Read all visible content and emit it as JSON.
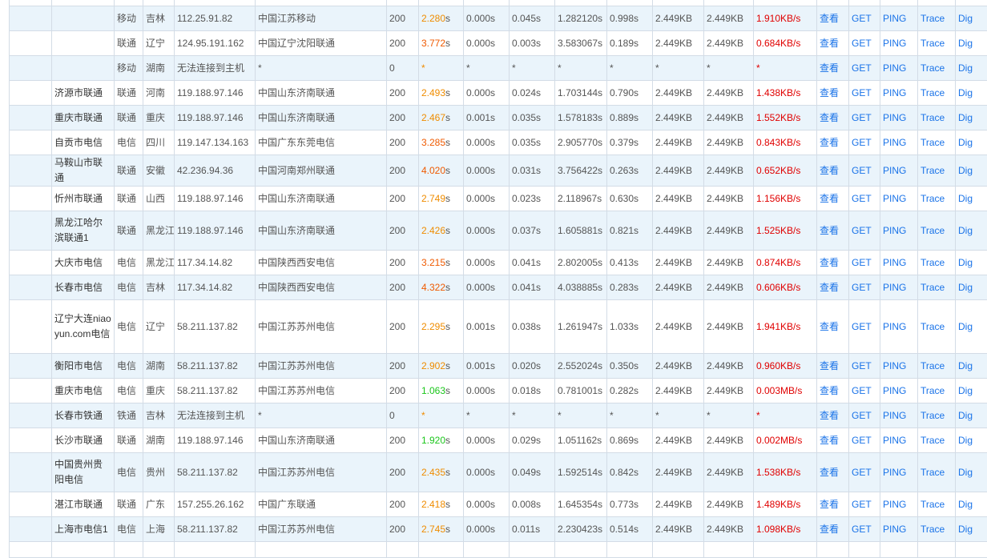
{
  "links": {
    "view": "查看",
    "get": "GET",
    "ping": "PING",
    "trace": "Trace",
    "dig": "Dig"
  },
  "rows": [
    {
      "h": 13,
      "partial": true,
      "name": "",
      "isp": "",
      "prov": "",
      "ip": "",
      "loc": "",
      "code": "",
      "total": "",
      "tclass": "slow",
      "unit": "",
      "dns": "",
      "connect": "",
      "download": "",
      "redirect": "",
      "size": "",
      "dsize": "",
      "speed": "",
      "showLinks": false
    },
    {
      "h": 31,
      "name": "",
      "isp": "移动",
      "prov": "吉林",
      "ip": "112.25.91.82",
      "loc": "中国江苏移动",
      "code": "200",
      "total": "2.280",
      "tclass": "slow",
      "unit": "s",
      "dns": "0.000s",
      "connect": "0.045s",
      "download": "1.282120s",
      "redirect": "0.998s",
      "size": "2.449KB",
      "dsize": "2.449KB",
      "speed": "1.910KB/s",
      "showLinks": true
    },
    {
      "h": 31,
      "name": "",
      "isp": "联通",
      "prov": "辽宁",
      "ip": "124.95.191.162",
      "loc": "中国辽宁沈阳联通",
      "code": "200",
      "total": "3.772",
      "tclass": "bad",
      "unit": "s",
      "dns": "0.000s",
      "connect": "0.003s",
      "download": "3.583067s",
      "redirect": "0.189s",
      "size": "2.449KB",
      "dsize": "2.449KB",
      "speed": "0.684KB/s",
      "showLinks": true
    },
    {
      "h": 31,
      "name": "",
      "isp": "移动",
      "prov": "湖南",
      "ip": "无法连接到主机",
      "loc": "*",
      "code": "0",
      "total": "*",
      "tclass": "slow",
      "unit": "",
      "dns": "*",
      "connect": "*",
      "download": "*",
      "redirect": "*",
      "size": "*",
      "dsize": "*",
      "speed": "*",
      "showLinks": true
    },
    {
      "h": 31,
      "name": "济源市联通",
      "isp": "联通",
      "prov": "河南",
      "ip": "119.188.97.146",
      "loc": "中国山东济南联通",
      "code": "200",
      "total": "2.493",
      "tclass": "slow",
      "unit": "s",
      "dns": "0.000s",
      "connect": "0.024s",
      "download": "1.703144s",
      "redirect": "0.790s",
      "size": "2.449KB",
      "dsize": "2.449KB",
      "speed": "1.438KB/s",
      "showLinks": true
    },
    {
      "h": 31,
      "name": "重庆市联通",
      "isp": "联通",
      "prov": "重庆",
      "ip": "119.188.97.146",
      "loc": "中国山东济南联通",
      "code": "200",
      "total": "2.467",
      "tclass": "slow",
      "unit": "s",
      "dns": "0.001s",
      "connect": "0.035s",
      "download": "1.578183s",
      "redirect": "0.889s",
      "size": "2.449KB",
      "dsize": "2.449KB",
      "speed": "1.552KB/s",
      "showLinks": true
    },
    {
      "h": 31,
      "name": "自贡市电信",
      "isp": "电信",
      "prov": "四川",
      "ip": "119.147.134.163",
      "loc": "中国广东东莞电信",
      "code": "200",
      "total": "3.285",
      "tclass": "bad",
      "unit": "s",
      "dns": "0.000s",
      "connect": "0.035s",
      "download": "2.905770s",
      "redirect": "0.379s",
      "size": "2.449KB",
      "dsize": "2.449KB",
      "speed": "0.843KB/s",
      "showLinks": true
    },
    {
      "h": 31,
      "name": "马鞍山市联通",
      "isp": "联通",
      "prov": "安徽",
      "ip": "42.236.94.36",
      "loc": "中国河南郑州联通",
      "code": "200",
      "total": "4.020",
      "tclass": "bad",
      "unit": "s",
      "dns": "0.000s",
      "connect": "0.031s",
      "download": "3.756422s",
      "redirect": "0.263s",
      "size": "2.449KB",
      "dsize": "2.449KB",
      "speed": "0.652KB/s",
      "showLinks": true
    },
    {
      "h": 31,
      "name": "忻州市联通",
      "isp": "联通",
      "prov": "山西",
      "ip": "119.188.97.146",
      "loc": "中国山东济南联通",
      "code": "200",
      "total": "2.749",
      "tclass": "slow",
      "unit": "s",
      "dns": "0.000s",
      "connect": "0.023s",
      "download": "2.118967s",
      "redirect": "0.630s",
      "size": "2.449KB",
      "dsize": "2.449KB",
      "speed": "1.156KB/s",
      "showLinks": true
    },
    {
      "h": 49,
      "name": "黑龙江哈尔滨联通1",
      "isp": "联通",
      "prov": "黑龙江",
      "ip": "119.188.97.146",
      "loc": "中国山东济南联通",
      "code": "200",
      "total": "2.426",
      "tclass": "slow",
      "unit": "s",
      "dns": "0.000s",
      "connect": "0.037s",
      "download": "1.605881s",
      "redirect": "0.821s",
      "size": "2.449KB",
      "dsize": "2.449KB",
      "speed": "1.525KB/s",
      "showLinks": true
    },
    {
      "h": 31,
      "name": "大庆市电信",
      "isp": "电信",
      "prov": "黑龙江",
      "ip": "117.34.14.82",
      "loc": "中国陕西西安电信",
      "code": "200",
      "total": "3.215",
      "tclass": "bad",
      "unit": "s",
      "dns": "0.000s",
      "connect": "0.041s",
      "download": "2.802005s",
      "redirect": "0.413s",
      "size": "2.449KB",
      "dsize": "2.449KB",
      "speed": "0.874KB/s",
      "showLinks": true
    },
    {
      "h": 31,
      "name": "长春市电信",
      "isp": "电信",
      "prov": "吉林",
      "ip": "117.34.14.82",
      "loc": "中国陕西西安电信",
      "code": "200",
      "total": "4.322",
      "tclass": "bad",
      "unit": "s",
      "dns": "0.000s",
      "connect": "0.041s",
      "download": "4.038885s",
      "redirect": "0.283s",
      "size": "2.449KB",
      "dsize": "2.449KB",
      "speed": "0.606KB/s",
      "showLinks": true
    },
    {
      "h": 67,
      "name": "辽宁大连niaoyun.com电信",
      "isp": "电信",
      "prov": "辽宁",
      "ip": "58.211.137.82",
      "loc": "中国江苏苏州电信",
      "code": "200",
      "total": "2.295",
      "tclass": "slow",
      "unit": "s",
      "dns": "0.001s",
      "connect": "0.038s",
      "download": "1.261947s",
      "redirect": "1.033s",
      "size": "2.449KB",
      "dsize": "2.449KB",
      "speed": "1.941KB/s",
      "showLinks": true
    },
    {
      "h": 31,
      "name": "衡阳市电信",
      "isp": "电信",
      "prov": "湖南",
      "ip": "58.211.137.82",
      "loc": "中国江苏苏州电信",
      "code": "200",
      "total": "2.902",
      "tclass": "slow",
      "unit": "s",
      "dns": "0.001s",
      "connect": "0.020s",
      "download": "2.552024s",
      "redirect": "0.350s",
      "size": "2.449KB",
      "dsize": "2.449KB",
      "speed": "0.960KB/s",
      "showLinks": true
    },
    {
      "h": 31,
      "name": "重庆市电信",
      "isp": "电信",
      "prov": "重庆",
      "ip": "58.211.137.82",
      "loc": "中国江苏苏州电信",
      "code": "200",
      "total": "1.063",
      "tclass": "fast",
      "unit": "s",
      "dns": "0.000s",
      "connect": "0.018s",
      "download": "0.781001s",
      "redirect": "0.282s",
      "size": "2.449KB",
      "dsize": "2.449KB",
      "speed": "0.003MB/s",
      "showLinks": true
    },
    {
      "h": 31,
      "name": "长春市铁通",
      "isp": "铁通",
      "prov": "吉林",
      "ip": "无法连接到主机",
      "loc": "*",
      "code": "0",
      "total": "*",
      "tclass": "slow",
      "unit": "",
      "dns": "*",
      "connect": "*",
      "download": "*",
      "redirect": "*",
      "size": "*",
      "dsize": "*",
      "speed": "*",
      "showLinks": true
    },
    {
      "h": 31,
      "name": "长沙市联通",
      "isp": "联通",
      "prov": "湖南",
      "ip": "119.188.97.146",
      "loc": "中国山东济南联通",
      "code": "200",
      "total": "1.920",
      "tclass": "fast",
      "unit": "s",
      "dns": "0.000s",
      "connect": "0.029s",
      "download": "1.051162s",
      "redirect": "0.869s",
      "size": "2.449KB",
      "dsize": "2.449KB",
      "speed": "0.002MB/s",
      "showLinks": true
    },
    {
      "h": 49,
      "name": "中国贵州贵阳电信",
      "isp": "电信",
      "prov": "贵州",
      "ip": "58.211.137.82",
      "loc": "中国江苏苏州电信",
      "code": "200",
      "total": "2.435",
      "tclass": "slow",
      "unit": "s",
      "dns": "0.000s",
      "connect": "0.049s",
      "download": "1.592514s",
      "redirect": "0.842s",
      "size": "2.449KB",
      "dsize": "2.449KB",
      "speed": "1.538KB/s",
      "showLinks": true
    },
    {
      "h": 31,
      "name": "湛江市联通",
      "isp": "联通",
      "prov": "广东",
      "ip": "157.255.26.162",
      "loc": "中国广东联通",
      "code": "200",
      "total": "2.418",
      "tclass": "slow",
      "unit": "s",
      "dns": "0.000s",
      "connect": "0.008s",
      "download": "1.645354s",
      "redirect": "0.773s",
      "size": "2.449KB",
      "dsize": "2.449KB",
      "speed": "1.489KB/s",
      "showLinks": true
    },
    {
      "h": 31,
      "name": "上海市电信1",
      "isp": "电信",
      "prov": "上海",
      "ip": "58.211.137.82",
      "loc": "中国江苏苏州电信",
      "code": "200",
      "total": "2.745",
      "tclass": "slow",
      "unit": "s",
      "dns": "0.000s",
      "connect": "0.011s",
      "download": "2.230423s",
      "redirect": "0.514s",
      "size": "2.449KB",
      "dsize": "2.449KB",
      "speed": "1.098KB/s",
      "showLinks": true
    },
    {
      "h": 20,
      "partial": true,
      "name": "",
      "isp": "",
      "prov": "",
      "ip": "",
      "loc": "",
      "code": "",
      "total": "",
      "tclass": "slow",
      "unit": "",
      "dns": "",
      "connect": "",
      "download": "",
      "redirect": "",
      "size": "",
      "dsize": "",
      "speed": "",
      "showLinks": false
    }
  ]
}
